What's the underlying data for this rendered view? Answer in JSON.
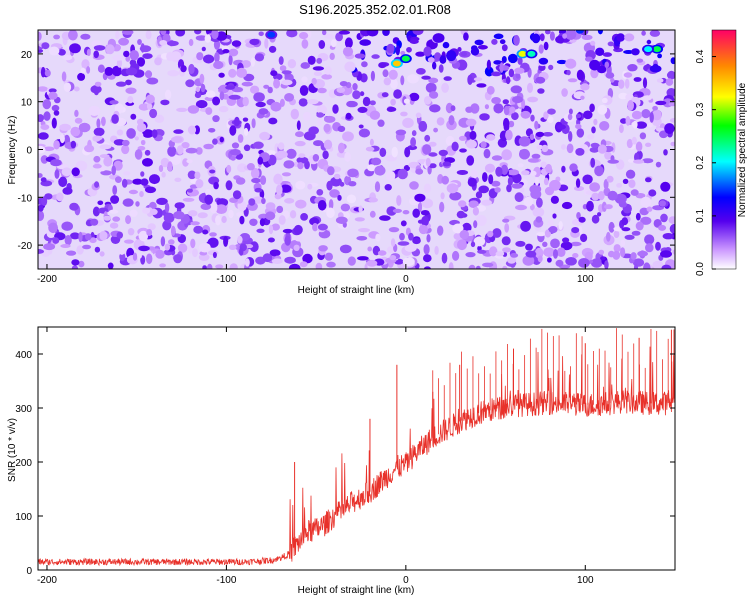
{
  "title": "S196.2025.352.02.01.R08",
  "chart_data": [
    {
      "type": "heatmap",
      "xlabel": "Height of straight line (km)",
      "ylabel": "Frequency (Hz)",
      "xlim": [
        -205,
        150
      ],
      "ylim": [
        -25,
        25
      ],
      "xticks": [
        -200,
        -100,
        0,
        100
      ],
      "yticks": [
        -20,
        -10,
        0,
        10,
        20
      ],
      "description_values": "noise-like spectral amplitude across all frequencies; stronger band near 18-22 Hz for heights above about -30 km",
      "hot_spots": [
        {
          "x": -5,
          "y": 18,
          "v": 0.35
        },
        {
          "x": 0,
          "y": 19,
          "v": 0.25
        },
        {
          "x": 65,
          "y": 20,
          "v": 0.32
        },
        {
          "x": 70,
          "y": 20,
          "v": 0.22
        },
        {
          "x": 140,
          "y": 21,
          "v": 0.25
        },
        {
          "x": 135,
          "y": 21,
          "v": 0.2
        },
        {
          "x": -75,
          "y": 24,
          "v": 0.15
        }
      ],
      "colorbar": {
        "label": "Normalized spectral amplitude",
        "range": [
          0.0,
          0.45
        ],
        "ticks": [
          "0.0",
          "0.1",
          "0.2",
          "0.3",
          "0.4"
        ]
      }
    },
    {
      "type": "line",
      "xlabel": "Height of straight line (km)",
      "ylabel": "SNR (10 * v/v)",
      "xlim": [
        -205,
        150
      ],
      "ylim": [
        0,
        450
      ],
      "xticks": [
        -200,
        -100,
        0,
        100
      ],
      "yticks": [
        0,
        100,
        200,
        300,
        400
      ],
      "color": "#e8312a",
      "series": [
        {
          "name": "SNR",
          "x": [
            -205,
            -180,
            -150,
            -120,
            -90,
            -75,
            -70,
            -65,
            -60,
            -55,
            -50,
            -45,
            -40,
            -35,
            -30,
            -25,
            -20,
            -15,
            -10,
            -5,
            0,
            5,
            10,
            15,
            20,
            25,
            30,
            35,
            40,
            50,
            60,
            70,
            80,
            90,
            100,
            110,
            120,
            130,
            140,
            150
          ],
          "y": [
            15,
            15,
            15,
            15,
            15,
            18,
            22,
            30,
            50,
            70,
            75,
            85,
            100,
            110,
            125,
            135,
            145,
            160,
            175,
            190,
            195,
            215,
            230,
            245,
            255,
            265,
            275,
            283,
            290,
            298,
            305,
            307,
            310,
            308,
            305,
            307,
            312,
            310,
            308,
            310
          ],
          "spikes": [
            {
              "x": -62,
              "y": 200
            },
            {
              "x": -20,
              "y": 280
            },
            {
              "x": -5,
              "y": 380
            },
            {
              "x": 15,
              "y": 330
            },
            {
              "x": 30,
              "y": 380
            },
            {
              "x": 60,
              "y": 410
            },
            {
              "x": 100,
              "y": 420
            },
            {
              "x": 130,
              "y": 430
            },
            {
              "x": 148,
              "y": 445
            }
          ]
        }
      ]
    }
  ]
}
